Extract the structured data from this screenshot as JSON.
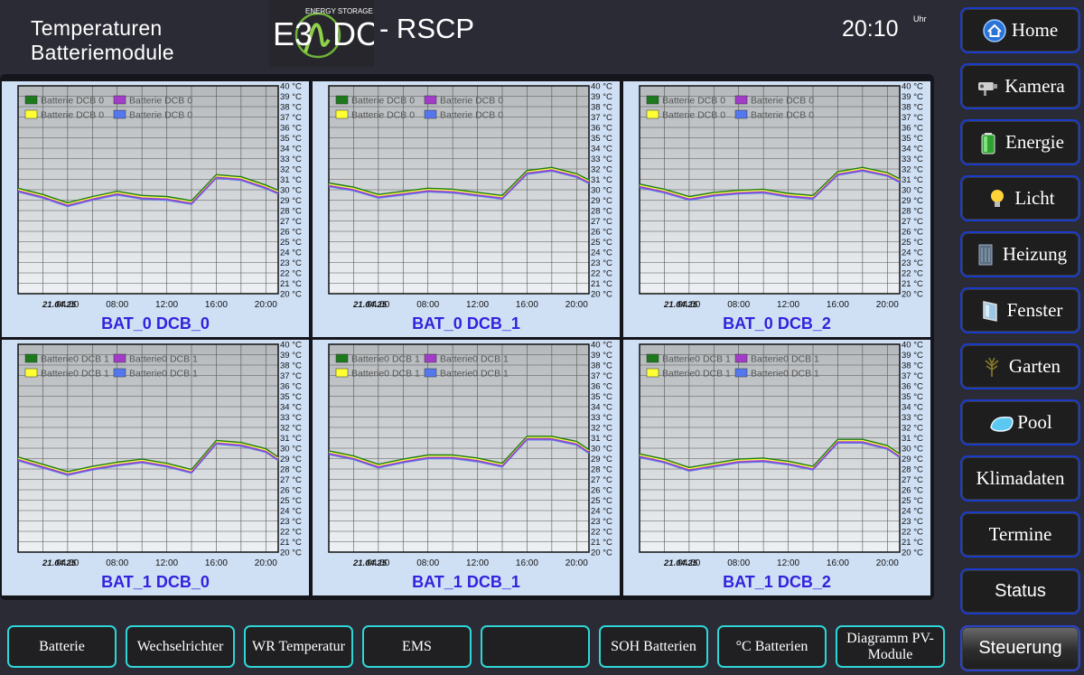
{
  "header": {
    "title_line1": "Temperaturen",
    "title_line2": "Batteriemodule",
    "logo_tagline": "ENERGY STORAGE",
    "app_title": "- RSCP",
    "clock": "20:10",
    "clock_unit": "Uhr"
  },
  "colors": {
    "series": [
      "#1c7a1c",
      "#a33cc8",
      "#ffff33",
      "#5577ee"
    ],
    "card_title": "#3322dd",
    "side_border": "#1a3ccd",
    "bottom_border": "#2fd6d6"
  },
  "sidebar": [
    {
      "label": "Home",
      "icon": "home-icon"
    },
    {
      "label": "Kamera",
      "icon": "camera-icon"
    },
    {
      "label": "Energie",
      "icon": "battery-icon"
    },
    {
      "label": "Licht",
      "icon": "lightbulb-icon"
    },
    {
      "label": "Heizung",
      "icon": "heater-icon"
    },
    {
      "label": "Fenster",
      "icon": "window-icon"
    },
    {
      "label": "Garten",
      "icon": "plant-icon"
    },
    {
      "label": "Pool",
      "icon": "pool-icon"
    },
    {
      "label": "Klimadaten",
      "icon": ""
    },
    {
      "label": "Termine",
      "icon": ""
    },
    {
      "label": "Status",
      "icon": ""
    },
    {
      "label": "Steuerung",
      "icon": ""
    }
  ],
  "bottom_nav": [
    "Batterie",
    "Wechselrichter",
    "WR Temperatur",
    "EMS",
    "",
    "SOH Batterien",
    "°C Batterien",
    "Diagramm PV-Module"
  ],
  "chart_data": [
    {
      "type": "line",
      "title": "BAT_0 DCB_0",
      "date_label": "21.04.25",
      "x": [
        "00:00",
        "02:00",
        "04:00",
        "06:00",
        "08:00",
        "10:00",
        "12:00",
        "14:00",
        "16:00",
        "18:00",
        "20:00",
        "21:00"
      ],
      "xticks": [
        "04:00",
        "08:00",
        "12:00",
        "16:00",
        "20:00"
      ],
      "ylim": [
        20,
        40
      ],
      "yticks": [
        "20 °C",
        "21 °C",
        "22 °C",
        "23 °C",
        "24 °C",
        "25 °C",
        "26 °C",
        "27 °C",
        "28 °C",
        "29 °C",
        "30 °C",
        "31 °C",
        "32 °C",
        "33 °C",
        "34 °C",
        "35 °C",
        "36 °C",
        "37 °C",
        "38 °C",
        "39 °C",
        "40 °C"
      ],
      "legend": [
        "Batterie DCB 0",
        "Batterie DCB 0",
        "Batterie DCB 0",
        "Batterie DCB 0"
      ],
      "series": [
        {
          "name": "Batterie DCB 0",
          "values": [
            30,
            29.4,
            28.6,
            29.2,
            29.7,
            29.3,
            29.2,
            28.8,
            31.3,
            31.1,
            30.3,
            29.8
          ]
        }
      ]
    },
    {
      "type": "line",
      "title": "BAT_0 DCB_1",
      "date_label": "21.04.25",
      "x": [
        "00:00",
        "02:00",
        "04:00",
        "06:00",
        "08:00",
        "10:00",
        "12:00",
        "14:00",
        "16:00",
        "18:00",
        "20:00",
        "21:00"
      ],
      "xticks": [
        "04:00",
        "08:00",
        "12:00",
        "16:00",
        "20:00"
      ],
      "ylim": [
        20,
        40
      ],
      "yticks": [
        "20 °C",
        "21 °C",
        "22 °C",
        "23 °C",
        "24 °C",
        "25 °C",
        "26 °C",
        "27 °C",
        "28 °C",
        "29 °C",
        "30 °C",
        "31 °C",
        "32 °C",
        "33 °C",
        "34 °C",
        "35 °C",
        "36 °C",
        "37 °C",
        "38 °C",
        "39 °C",
        "40 °C"
      ],
      "legend": [
        "Batterie DCB 0",
        "Batterie DCB 0",
        "Batterie DCB 0",
        "Batterie DCB 0"
      ],
      "series": [
        {
          "name": "Batterie DCB 0",
          "values": [
            30.5,
            30.1,
            29.4,
            29.7,
            30.0,
            29.9,
            29.6,
            29.3,
            31.7,
            32.0,
            31.4,
            30.8
          ]
        }
      ]
    },
    {
      "type": "line",
      "title": "BAT_0 DCB_2",
      "date_label": "21.04.25",
      "x": [
        "00:00",
        "02:00",
        "04:00",
        "06:00",
        "08:00",
        "10:00",
        "12:00",
        "14:00",
        "16:00",
        "18:00",
        "20:00",
        "21:00"
      ],
      "xticks": [
        "04:00",
        "08:00",
        "12:00",
        "16:00",
        "20:00"
      ],
      "ylim": [
        20,
        40
      ],
      "yticks": [
        "20 °C",
        "21 °C",
        "22 °C",
        "23 °C",
        "24 °C",
        "25 °C",
        "26 °C",
        "27 °C",
        "28 °C",
        "29 °C",
        "30 °C",
        "31 °C",
        "32 °C",
        "33 °C",
        "34 °C",
        "35 °C",
        "36 °C",
        "37 °C",
        "38 °C",
        "39 °C",
        "40 °C"
      ],
      "legend": [
        "Batterie DCB 0",
        "Batterie DCB 0",
        "Batterie DCB 0",
        "Batterie DCB 0"
      ],
      "series": [
        {
          "name": "Batterie DCB 0",
          "values": [
            30.4,
            29.9,
            29.2,
            29.6,
            29.8,
            29.9,
            29.5,
            29.3,
            31.6,
            32.0,
            31.5,
            30.9
          ]
        }
      ]
    },
    {
      "type": "line",
      "title": "BAT_1 DCB_0",
      "date_label": "21.04.25",
      "x": [
        "00:00",
        "02:00",
        "04:00",
        "06:00",
        "08:00",
        "10:00",
        "12:00",
        "14:00",
        "16:00",
        "18:00",
        "20:00",
        "21:00"
      ],
      "xticks": [
        "04:00",
        "08:00",
        "12:00",
        "16:00",
        "20:00"
      ],
      "ylim": [
        20,
        40
      ],
      "yticks": [
        "20 °C",
        "21 °C",
        "22 °C",
        "23 °C",
        "24 °C",
        "25 °C",
        "26 °C",
        "27 °C",
        "28 °C",
        "29 °C",
        "30 °C",
        "31 °C",
        "32 °C",
        "33 °C",
        "34 °C",
        "35 °C",
        "36 °C",
        "37 °C",
        "38 °C",
        "39 °C",
        "40 °C"
      ],
      "legend": [
        "Batterie0 DCB 1",
        "Batterie0 DCB 1",
        "Batterie0 DCB 1",
        "Batterie0 DCB 1"
      ],
      "series": [
        {
          "name": "Batterie0 DCB 1",
          "values": [
            29.0,
            28.3,
            27.6,
            28.1,
            28.5,
            28.8,
            28.4,
            27.8,
            30.6,
            30.4,
            29.8,
            29.0
          ]
        }
      ]
    },
    {
      "type": "line",
      "title": "BAT_1 DCB_1",
      "date_label": "21.04.25",
      "x": [
        "00:00",
        "02:00",
        "04:00",
        "06:00",
        "08:00",
        "10:00",
        "12:00",
        "14:00",
        "16:00",
        "18:00",
        "20:00",
        "21:00"
      ],
      "xticks": [
        "04:00",
        "08:00",
        "12:00",
        "16:00",
        "20:00"
      ],
      "ylim": [
        20,
        40
      ],
      "yticks": [
        "20 °C",
        "21 °C",
        "22 °C",
        "23 °C",
        "24 °C",
        "25 °C",
        "26 °C",
        "27 °C",
        "28 °C",
        "29 °C",
        "30 °C",
        "31 °C",
        "32 °C",
        "33 °C",
        "34 °C",
        "35 °C",
        "36 °C",
        "37 °C",
        "38 °C",
        "39 °C",
        "40 °C"
      ],
      "legend": [
        "Batterie0 DCB 1",
        "Batterie0 DCB 1",
        "Batterie0 DCB 1",
        "Batterie0 DCB 1"
      ],
      "series": [
        {
          "name": "Batterie0 DCB 1",
          "values": [
            29.6,
            29.1,
            28.3,
            28.8,
            29.2,
            29.2,
            28.9,
            28.4,
            31.0,
            31.0,
            30.5,
            29.7
          ]
        }
      ]
    },
    {
      "type": "line",
      "title": "BAT_1 DCB_2",
      "date_label": "21.04.25",
      "x": [
        "00:00",
        "02:00",
        "04:00",
        "06:00",
        "08:00",
        "10:00",
        "12:00",
        "14:00",
        "16:00",
        "18:00",
        "20:00",
        "21:00"
      ],
      "xticks": [
        "04:00",
        "08:00",
        "12:00",
        "16:00",
        "20:00"
      ],
      "ylim": [
        20,
        40
      ],
      "yticks": [
        "20 °C",
        "21 °C",
        "22 °C",
        "23 °C",
        "24 °C",
        "25 °C",
        "26 °C",
        "27 °C",
        "28 °C",
        "29 °C",
        "30 °C",
        "31 °C",
        "32 °C",
        "33 °C",
        "34 °C",
        "35 °C",
        "36 °C",
        "37 °C",
        "38 °C",
        "39 °C",
        "40 °C"
      ],
      "legend": [
        "Batterie0 DCB 1",
        "Batterie0 DCB 1",
        "Batterie0 DCB 1",
        "Batterie0 DCB 1"
      ],
      "series": [
        {
          "name": "Batterie0 DCB 1",
          "values": [
            29.3,
            28.8,
            28.0,
            28.4,
            28.8,
            28.9,
            28.6,
            28.1,
            30.7,
            30.7,
            30.1,
            29.3
          ]
        }
      ]
    }
  ]
}
